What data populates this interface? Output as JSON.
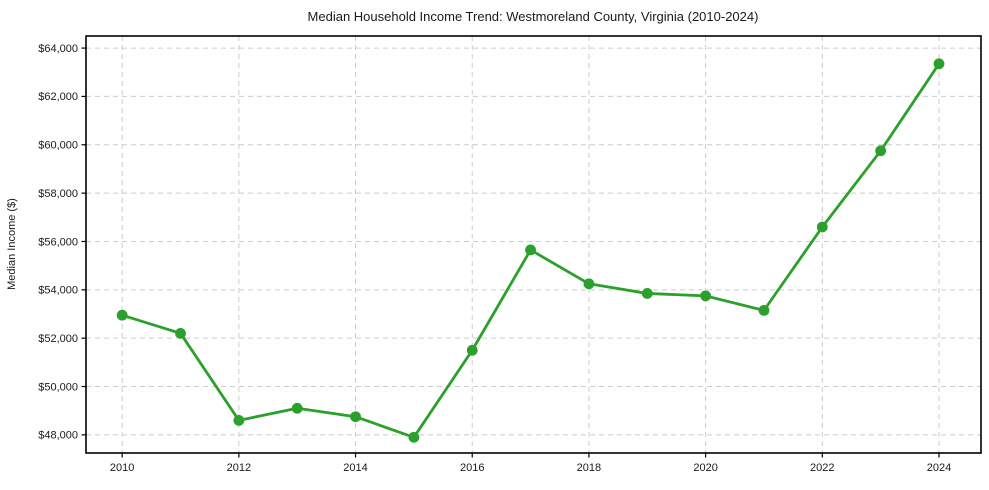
{
  "chart_data": {
    "type": "line",
    "title": "Median Household Income Trend: Westmoreland County, Virginia (2010-2024)",
    "xlabel": "",
    "ylabel": "Median Income ($)",
    "x": [
      2010,
      2011,
      2012,
      2013,
      2014,
      2015,
      2016,
      2017,
      2018,
      2019,
      2020,
      2021,
      2022,
      2023,
      2024
    ],
    "series": [
      {
        "name": "Median household income",
        "values": [
          52950,
          52200,
          48600,
          49100,
          48750,
          47900,
          51500,
          55650,
          54250,
          53850,
          53750,
          53150,
          56600,
          59750,
          63350
        ],
        "color": "#2ca02c",
        "marker": "circle"
      }
    ],
    "xticks": [
      2010,
      2012,
      2014,
      2016,
      2018,
      2020,
      2022,
      2024
    ],
    "xtick_labels": [
      "2010",
      "2012",
      "2014",
      "2016",
      "2018",
      "2020",
      "2022",
      "2024"
    ],
    "yticks": [
      48000,
      50000,
      52000,
      54000,
      56000,
      58000,
      60000,
      62000,
      64000
    ],
    "ytick_labels": [
      "$48,000",
      "$50,000",
      "$52,000",
      "$54,000",
      "$56,000",
      "$58,000",
      "$60,000",
      "$62,000",
      "$64,000"
    ],
    "xlim": [
      2009.38,
      2024.72
    ],
    "ylim": [
      47250,
      64500
    ],
    "grid": "on",
    "grid_style": "dashed",
    "legend": "none"
  },
  "style": {
    "line_color": "#2ca02c",
    "grid_color": "#cccccc",
    "axis_color": "#000000",
    "text_color": "#1a1a1a",
    "background": "#ffffff"
  }
}
